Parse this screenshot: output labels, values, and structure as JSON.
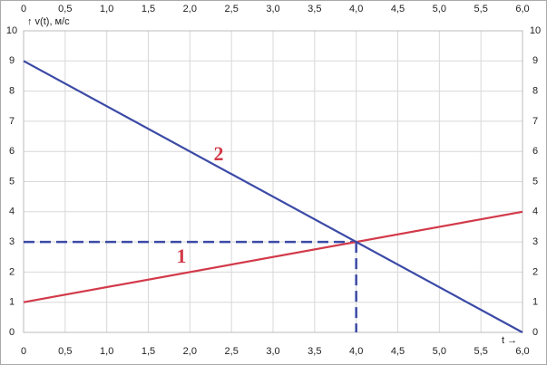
{
  "chart_data": {
    "type": "line",
    "y_label": "↑ v(t), м/с",
    "x_label": "t →",
    "x": [
      0,
      6
    ],
    "series": [
      {
        "name": "1",
        "color": "#d23a4a",
        "values": [
          1,
          4
        ]
      },
      {
        "name": "2",
        "color": "#3b4aa6",
        "values": [
          9,
          0
        ]
      }
    ],
    "guide": {
      "x": 4,
      "y": 3,
      "color": "#3b4aa6"
    },
    "xlim": [
      0,
      6
    ],
    "xticks": [
      0,
      {
        "value": 0.5,
        "label": "0,5"
      },
      {
        "value": 1,
        "label": "1,0"
      },
      {
        "value": 1.5,
        "label": "1,5"
      },
      {
        "value": 2,
        "label": "2,0"
      },
      {
        "value": 2.5,
        "label": "2,5"
      },
      {
        "value": 3,
        "label": "3,0"
      },
      {
        "value": 3.5,
        "label": "3,5"
      },
      {
        "value": 4,
        "label": "4,0"
      },
      {
        "value": 4.5,
        "label": "4,5"
      },
      {
        "value": 5,
        "label": "5,0"
      },
      {
        "value": 5.5,
        "label": "5,5"
      },
      {
        "value": 6,
        "label": "6,0"
      }
    ],
    "ylim": [
      0,
      10
    ],
    "yticks": [
      0,
      1,
      2,
      3,
      4,
      5,
      6,
      7,
      8,
      9,
      10
    ],
    "grid": true
  }
}
